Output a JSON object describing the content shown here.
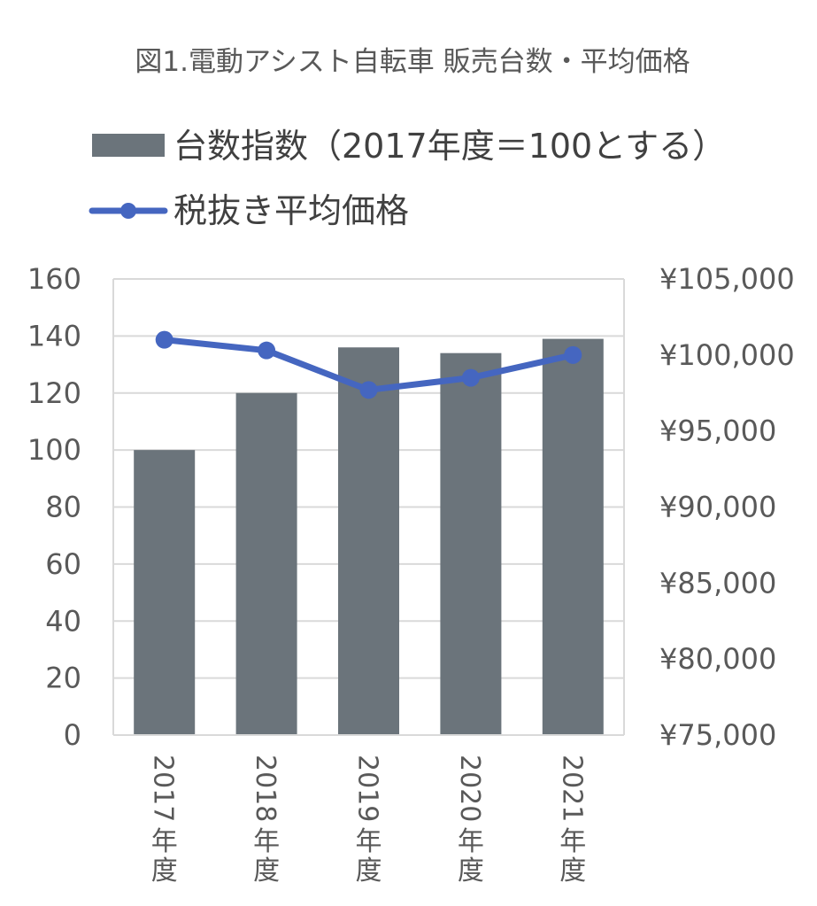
{
  "chart_data": {
    "type": "bar",
    "title": "図1.電動アシスト自転車 販売台数・平均価格",
    "categories": [
      [
        "2017",
        "年",
        "度"
      ],
      [
        "2018",
        "年",
        "度"
      ],
      [
        "2019",
        "年",
        "度"
      ],
      [
        "2020",
        "年",
        "度"
      ],
      [
        "2021",
        "年",
        "度"
      ]
    ],
    "series": [
      {
        "name": "台数指数（2017年度＝100とする）",
        "kind": "bar",
        "axis": "left",
        "color": "#6b747b",
        "values": [
          100,
          120,
          136,
          134,
          139
        ]
      },
      {
        "name": "税抜き平均価格",
        "kind": "line",
        "axis": "right",
        "color": "#4566c0",
        "values": [
          101000,
          100300,
          97700,
          98500,
          100000
        ]
      }
    ],
    "y_left": {
      "min": 0,
      "max": 160,
      "ticks": [
        "0",
        "20",
        "40",
        "60",
        "80",
        "100",
        "120",
        "140",
        "160"
      ]
    },
    "y_right": {
      "min": 75000,
      "max": 105000,
      "ticks": [
        "¥75,000",
        "¥80,000",
        "¥85,000",
        "¥90,000",
        "¥95,000",
        "¥100,000",
        "¥105,000"
      ]
    },
    "grid": true,
    "legend_position": "top-left"
  }
}
